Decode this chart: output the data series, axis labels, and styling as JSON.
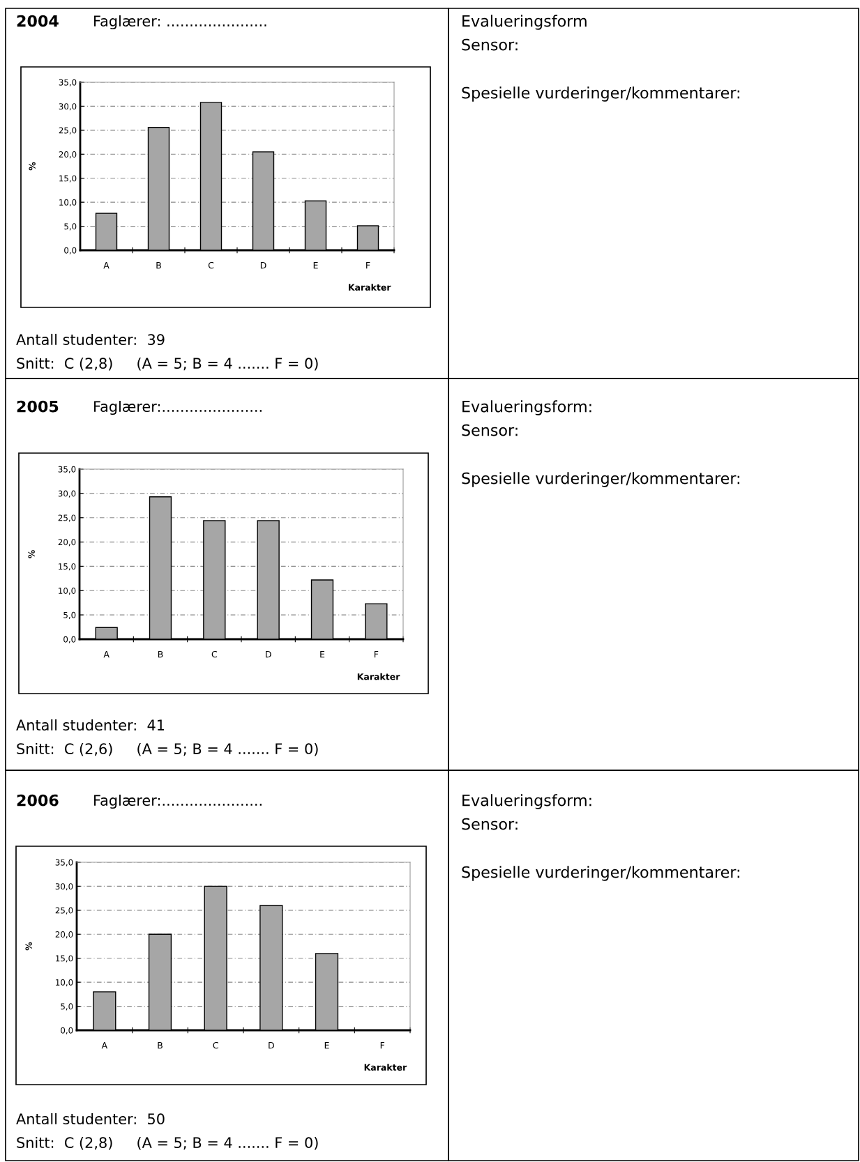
{
  "chart_data": [
    {
      "type": "bar",
      "title": "2004",
      "categories": [
        "A",
        "B",
        "C",
        "D",
        "E",
        "F"
      ],
      "values": [
        7.7,
        25.6,
        30.8,
        20.5,
        10.3,
        5.1
      ],
      "color": "#a6a6a6",
      "xlabel": "Karakter",
      "ylabel": "%",
      "ylim": [
        0,
        35
      ],
      "yticks": [
        {
          "value": 0,
          "label": "0,0"
        },
        {
          "value": 5,
          "label": "5,0"
        },
        {
          "value": 10,
          "label": "10,0"
        },
        {
          "value": 15,
          "label": "15,0"
        },
        {
          "value": 20,
          "label": "20,0"
        },
        {
          "value": 25,
          "label": "25,0"
        },
        {
          "value": 30,
          "label": "30,0"
        },
        {
          "value": 35,
          "label": "35,0"
        }
      ],
      "grid": "y",
      "annotations": [
        "Faglærer: ......................",
        "Antall studenter:  39",
        "Snitt:  C (2,8)     (A = 5; B = 4 ....... F = 0)",
        "Evalueringsform",
        "Sensor:",
        "Spesielle vurderinger/kommentarer:"
      ]
    },
    {
      "type": "bar",
      "title": "2005",
      "categories": [
        "A",
        "B",
        "C",
        "D",
        "E",
        "F"
      ],
      "values": [
        2.4,
        29.3,
        24.4,
        24.4,
        12.2,
        7.3
      ],
      "color": "#a6a6a6",
      "xlabel": "Karakter",
      "ylabel": "%",
      "ylim": [
        0,
        35
      ],
      "yticks": [
        {
          "value": 0,
          "label": "0,0"
        },
        {
          "value": 5,
          "label": "5,0"
        },
        {
          "value": 10,
          "label": "10,0"
        },
        {
          "value": 15,
          "label": "15,0"
        },
        {
          "value": 20,
          "label": "20,0"
        },
        {
          "value": 25,
          "label": "25,0"
        },
        {
          "value": 30,
          "label": "30,0"
        },
        {
          "value": 35,
          "label": "35,0"
        }
      ],
      "grid": "y",
      "annotations": [
        "Faglærer:......................",
        "Antall studenter:  41",
        "Snitt:  C (2,6)     (A = 5; B = 4 ....... F = 0)",
        "Evalueringsform:",
        "Sensor:",
        "Spesielle vurderinger/kommentarer:"
      ]
    },
    {
      "type": "bar",
      "title": "2006",
      "categories": [
        "A",
        "B",
        "C",
        "D",
        "E",
        "F"
      ],
      "values": [
        8.0,
        20.0,
        30.0,
        26.0,
        16.0,
        0.0
      ],
      "color": "#a6a6a6",
      "xlabel": "Karakter",
      "ylabel": "%",
      "ylim": [
        0,
        35
      ],
      "yticks": [
        {
          "value": 0,
          "label": "0,0"
        },
        {
          "value": 5,
          "label": "5,0"
        },
        {
          "value": 10,
          "label": "10,0"
        },
        {
          "value": 15,
          "label": "15,0"
        },
        {
          "value": 20,
          "label": "20,0"
        },
        {
          "value": 25,
          "label": "25,0"
        },
        {
          "value": 30,
          "label": "30,0"
        },
        {
          "value": 35,
          "label": "35,0"
        }
      ],
      "grid": "y",
      "annotations": [
        "Faglærer:......................",
        "Antall studenter:  50",
        "Snitt:  C (2,8)     (A = 5; B = 4 ....... F = 0)",
        "Evalueringsform:",
        "Sensor:",
        "Spesielle vurderinger/kommentarer:"
      ]
    }
  ]
}
